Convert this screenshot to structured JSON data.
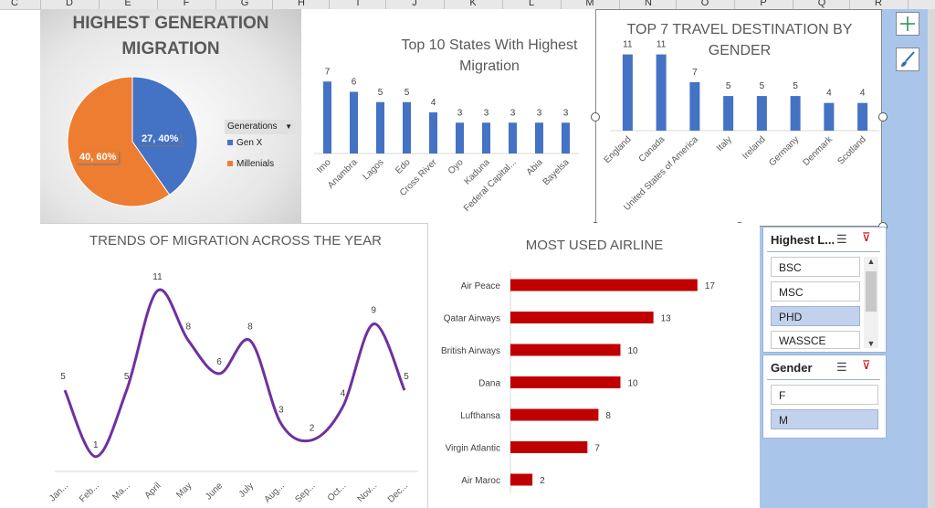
{
  "columns": [
    "C",
    "D",
    "E",
    "F",
    "G",
    "H",
    "I",
    "J",
    "K",
    "L",
    "M",
    "N",
    "O",
    "P",
    "Q",
    "R"
  ],
  "pie_panel": {
    "title_line1": "HIGHEST GENERATION",
    "title_line2": "MIGRATION",
    "legend_header": "Generations",
    "legend_items": [
      {
        "label": "Gen X",
        "color": "#4472c4"
      },
      {
        "label": "Millenials",
        "color": "#ed7d31"
      }
    ],
    "labels": [
      "27, 40%",
      "40, 60%"
    ]
  },
  "states_panel": {
    "title_line1": "Top 10 States  With Highest",
    "title_line2": "Migration"
  },
  "travel_panel": {
    "title_line1": "TOP 7 TRAVEL DESTINATION BY",
    "title_line2": "GENDER"
  },
  "trend_panel": {
    "title": "TRENDS OF MIGRATION ACROSS THE YEAR"
  },
  "airline_panel": {
    "title": "MOST USED AIRLINE"
  },
  "chart_data": [
    {
      "type": "pie",
      "title": "HIGHEST GENERATION MIGRATION",
      "categories": [
        "Gen X",
        "Millenials"
      ],
      "values": [
        27,
        40
      ],
      "percent_labels": [
        "40%",
        "60%"
      ],
      "colors": [
        "#4472c4",
        "#ed7d31"
      ],
      "legend": "right"
    },
    {
      "type": "bar",
      "title": "Top 10 States  With Highest Migration",
      "categories": [
        "Imo",
        "Anambra",
        "Lagos",
        "Edo",
        "Cross River",
        "Oyo",
        "Kaduna",
        "Federal Capital...",
        "Abia",
        "Bayelsa"
      ],
      "values": [
        7,
        6,
        5,
        5,
        4,
        3,
        3,
        3,
        3,
        3
      ],
      "color": "#4472c4",
      "ylim": [
        0,
        8
      ]
    },
    {
      "type": "bar",
      "title": "TOP 7 TRAVEL DESTINATION BY GENDER",
      "categories": [
        "England",
        "Canada",
        "United States of America",
        "Italy",
        "Ireland",
        "Germany",
        "Denmark",
        "Scotland"
      ],
      "values": [
        11,
        11,
        7,
        5,
        5,
        5,
        4,
        4
      ],
      "color": "#4472c4",
      "ylim": [
        0,
        12
      ]
    },
    {
      "type": "line",
      "title": "TRENDS OF MIGRATION ACROSS THE YEAR",
      "categories": [
        "Jan...",
        "Feb...",
        "Ma...",
        "April",
        "May",
        "June",
        "July",
        "Aug...",
        "Sep...",
        "Oct...",
        "Nov...",
        "Dec..."
      ],
      "values": [
        5,
        1,
        5,
        11,
        8,
        6,
        8,
        3,
        2,
        4,
        9,
        5
      ],
      "color": "#7030a0",
      "smooth": true,
      "ylim": [
        0,
        12
      ]
    },
    {
      "type": "bar",
      "orientation": "horizontal",
      "title": "MOST USED AIRLINE",
      "categories": [
        "Air Peace",
        "Qatar Airways",
        "British Airways",
        "Dana",
        "Lufthansa",
        "Virgin Atlantic",
        "Air Maroc"
      ],
      "values": [
        17,
        13,
        10,
        10,
        8,
        7,
        2
      ],
      "color": "#c00000",
      "xlim": [
        0,
        18
      ]
    }
  ],
  "slicers": [
    {
      "header": "Highest L...",
      "items": [
        {
          "label": "BSC",
          "selected": false
        },
        {
          "label": "MSC",
          "selected": false
        },
        {
          "label": "PHD",
          "selected": true
        },
        {
          "label": "WASSCE",
          "selected": false
        }
      ]
    },
    {
      "header": "Gender",
      "items": [
        {
          "label": "F",
          "selected": false
        },
        {
          "label": "M",
          "selected": true
        }
      ]
    }
  ]
}
